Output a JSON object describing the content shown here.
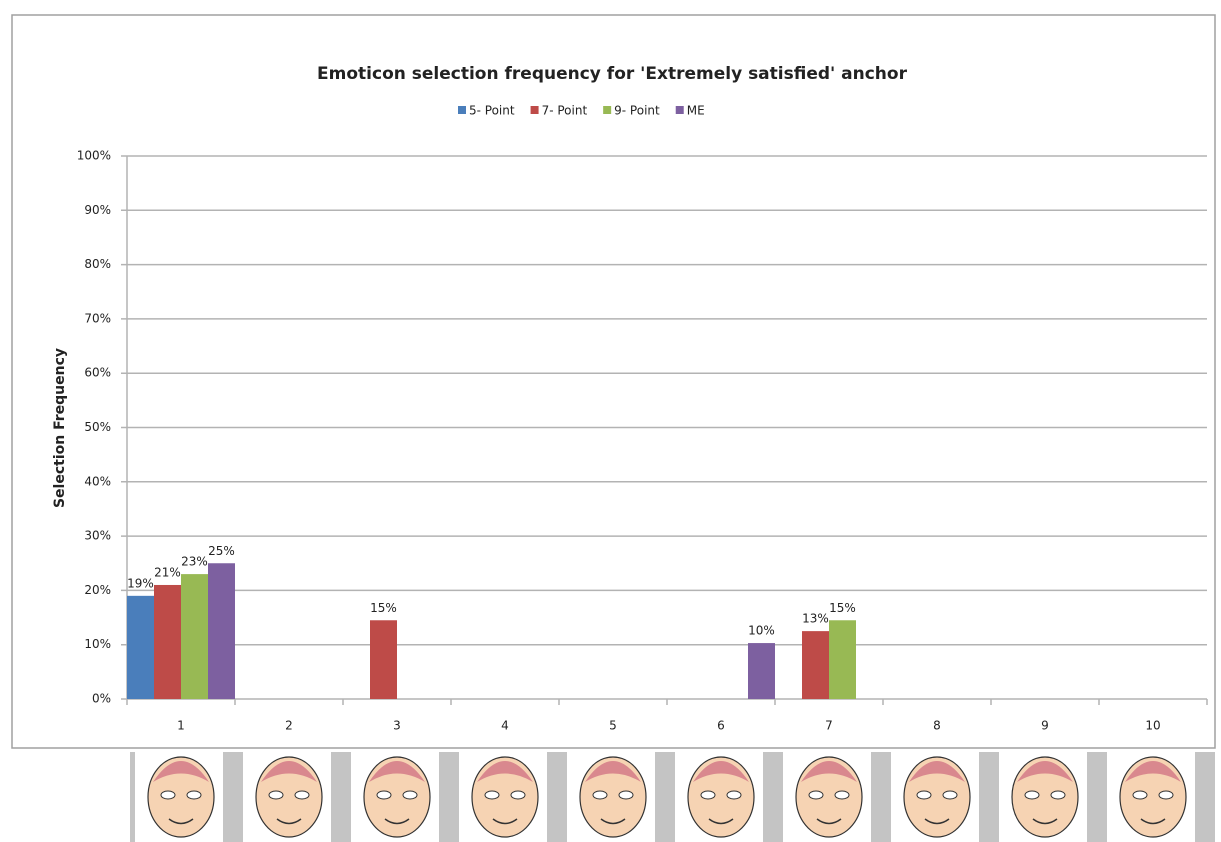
{
  "chart_data": {
    "type": "bar",
    "title": "Emoticon selection frequency for 'Extremely satisfied' anchor",
    "y_label": "Selection Frequency",
    "categories": [
      "1",
      "2",
      "3",
      "4",
      "5",
      "6",
      "7",
      "8",
      "9",
      "10"
    ],
    "series": [
      {
        "name": "5- Point",
        "color": "#4a7ebb",
        "values": [
          19,
          null,
          null,
          null,
          null,
          null,
          null,
          null,
          null,
          null
        ],
        "value_labels": [
          "19%",
          null,
          null,
          null,
          null,
          null,
          null,
          null,
          null,
          null
        ]
      },
      {
        "name": "7- Point",
        "color": "#be4b48",
        "values": [
          21,
          null,
          14.5,
          null,
          null,
          null,
          12.5,
          null,
          null,
          null
        ],
        "value_labels": [
          "21%",
          null,
          "15%",
          null,
          null,
          null,
          "13%",
          null,
          null,
          null
        ]
      },
      {
        "name": "9- Point",
        "color": "#98b954",
        "values": [
          23,
          null,
          null,
          null,
          null,
          null,
          14.5,
          null,
          null,
          null
        ],
        "value_labels": [
          "23%",
          null,
          null,
          null,
          null,
          null,
          "15%",
          null,
          null,
          null
        ]
      },
      {
        "name": "ME",
        "color": "#7d60a0",
        "values": [
          25,
          null,
          null,
          null,
          null,
          10.3,
          null,
          null,
          null,
          null
        ],
        "value_labels": [
          "25%",
          null,
          null,
          null,
          null,
          "10%",
          null,
          null,
          null,
          null
        ]
      }
    ],
    "ylim": [
      0,
      100
    ],
    "yticks": [
      {
        "value": 0,
        "label": "0%"
      },
      {
        "value": 10,
        "label": "10%"
      },
      {
        "value": 20,
        "label": "20%"
      },
      {
        "value": 30,
        "label": "30%"
      },
      {
        "value": 40,
        "label": "40%"
      },
      {
        "value": 50,
        "label": "50%"
      },
      {
        "value": 60,
        "label": "60%"
      },
      {
        "value": 70,
        "label": "70%"
      },
      {
        "value": 80,
        "label": "80%"
      },
      {
        "value": 90,
        "label": "90%"
      },
      {
        "value": 100,
        "label": "100%"
      }
    ],
    "grid": true
  }
}
